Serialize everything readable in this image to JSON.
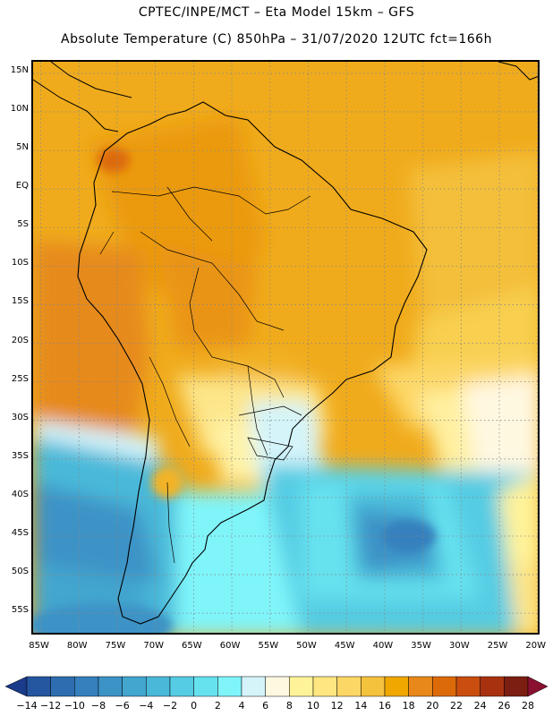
{
  "header": {
    "title_line1": "CPTEC/INPE/MCT –  Eta Model 15km – GFS",
    "title_line2": "Absolute Temperature (C) 850hPa – 31/07/2020 12UTC fct=166h"
  },
  "map": {
    "lat_labels": [
      "15N",
      "10N",
      "5N",
      "EQ",
      "5S",
      "10S",
      "15S",
      "20S",
      "25S",
      "30S",
      "35S",
      "40S",
      "45S",
      "50S",
      "55S"
    ],
    "lon_labels": [
      "85W",
      "80W",
      "75W",
      "70W",
      "65W",
      "60W",
      "55W",
      "50W",
      "45W",
      "40W",
      "35W",
      "30W",
      "25W",
      "20W"
    ],
    "extent": {
      "lon": [
        -86,
        -19.5
      ],
      "lat": [
        16.5,
        -58
      ]
    }
  },
  "colorbar": {
    "labels": [
      "−14",
      "−12",
      "−10",
      "−8",
      "−6",
      "−4",
      "−2",
      "0",
      "2",
      "4",
      "6",
      "8",
      "10",
      "12",
      "14",
      "16",
      "18",
      "20",
      "22",
      "24",
      "26",
      "28"
    ],
    "colors": [
      "#1a3a8a",
      "#2556a0",
      "#2e6eb0",
      "#3580bd",
      "#3c93c6",
      "#42a6cf",
      "#4ab9d9",
      "#55cce3",
      "#66e2ef",
      "#7ff5fa",
      "#d4f4fa",
      "#fff8e1",
      "#fff39a",
      "#ffe680",
      "#fdd766",
      "#f5c23e",
      "#f0a800",
      "#e8881a",
      "#dd6a08",
      "#c94e10",
      "#a83210",
      "#7c1f12",
      "#8a1030"
    ]
  }
}
